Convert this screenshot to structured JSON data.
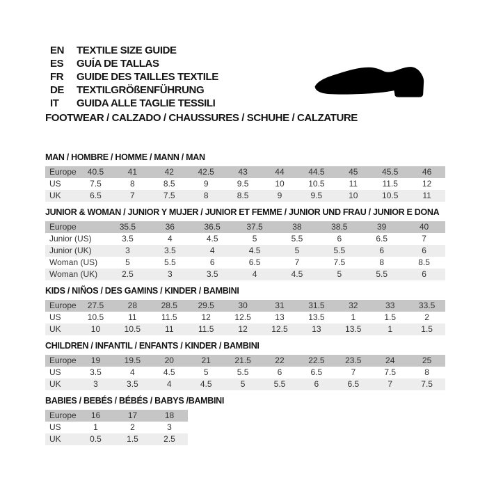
{
  "header": {
    "languages": [
      {
        "code": "EN",
        "label": "TEXTILE SIZE GUIDE"
      },
      {
        "code": "ES",
        "label": "GUÍA DE TALLAS"
      },
      {
        "code": "FR",
        "label": "GUIDE DES TAILLES TEXTILE"
      },
      {
        "code": "DE",
        "label": "TEXTILGRÖßENFÜHRUNG"
      },
      {
        "code": "IT",
        "label": "GUIDA ALLE TAGLIE TESSILI"
      }
    ],
    "shoe_icon": "dress-shoe-silhouette",
    "category_line": "FOOTWEAR / CALZADO / CHAUSSURES / SCHUHE / CALZATURE"
  },
  "colors": {
    "header_row": "#c6c6c6",
    "alt_row": "#ededed",
    "text": "#333333",
    "title_text": "#141414",
    "shoe": "#000000"
  },
  "tables": [
    {
      "title": "MAN / HOMBRE / HOMME / MANN / MAN",
      "rows": [
        {
          "label": "Europe",
          "values": [
            "40.5",
            "41",
            "42",
            "42.5",
            "43",
            "44",
            "44.5",
            "45",
            "45.5",
            "46"
          ]
        },
        {
          "label": "US",
          "values": [
            "7.5",
            "8",
            "8.5",
            "9",
            "9.5",
            "10",
            "10.5",
            "11",
            "11.5",
            "12"
          ]
        },
        {
          "label": "UK",
          "values": [
            "6.5",
            "7",
            "7.5",
            "8",
            "8.5",
            "9",
            "9.5",
            "10",
            "10.5",
            "11"
          ]
        }
      ]
    },
    {
      "title": "JUNIOR & WOMAN / JUNIOR Y MUJER / JUNIOR ET FEMME / JUNIOR UND FRAU / JUNIOR E DONA",
      "rows": [
        {
          "label": "Europe",
          "values": [
            "35.5",
            "36",
            "36.5",
            "37.5",
            "38",
            "38.5",
            "39",
            "40"
          ]
        },
        {
          "label": "Junior (US)",
          "values": [
            "3.5",
            "4",
            "4.5",
            "5",
            "5.5",
            "6",
            "6.5",
            "7"
          ]
        },
        {
          "label": "Junior (UK)",
          "values": [
            "3",
            "3.5",
            "4",
            "4.5",
            "5",
            "5.5",
            "6",
            "6"
          ]
        },
        {
          "label": "Woman (US)",
          "values": [
            "5",
            "5.5",
            "6",
            "6.5",
            "7",
            "7.5",
            "8",
            "8.5"
          ]
        },
        {
          "label": "Woman (UK)",
          "values": [
            "2.5",
            "3",
            "3.5",
            "4",
            "4.5",
            "5",
            "5.5",
            "6"
          ]
        }
      ]
    },
    {
      "title": "KIDS / NIÑOS / DES GAMINS / KINDER / BAMBINI",
      "rows": [
        {
          "label": "Europe",
          "values": [
            "27.5",
            "28",
            "28.5",
            "29.5",
            "30",
            "31",
            "31.5",
            "32",
            "33",
            "33.5"
          ]
        },
        {
          "label": "US",
          "values": [
            "10.5",
            "11",
            "11.5",
            "12",
            "12.5",
            "13",
            "13.5",
            "1",
            "1.5",
            "2"
          ]
        },
        {
          "label": "UK",
          "values": [
            "10",
            "10.5",
            "11",
            "11.5",
            "12",
            "12.5",
            "13",
            "13.5",
            "1",
            "1.5"
          ]
        }
      ]
    },
    {
      "title": "CHILDREN / INFANTIL / ENFANTS / KINDER / BAMBINI",
      "rows": [
        {
          "label": "Europe",
          "values": [
            "19",
            "19.5",
            "20",
            "21",
            "21.5",
            "22",
            "22.5",
            "23.5",
            "24",
            "25"
          ]
        },
        {
          "label": "US",
          "values": [
            "3.5",
            "4",
            "4.5",
            "5",
            "5.5",
            "6",
            "6.5",
            "7",
            "7.5",
            "8"
          ]
        },
        {
          "label": "UK",
          "values": [
            "3",
            "3.5",
            "4",
            "4.5",
            "5",
            "5.5",
            "6",
            "6.5",
            "7",
            "7.5"
          ]
        }
      ]
    },
    {
      "title": "BABIES / BEBÉS / BÉBÉS / BABYS /BAMBINI",
      "rows": [
        {
          "label": "Europe",
          "values": [
            "16",
            "17",
            "18"
          ]
        },
        {
          "label": "US",
          "values": [
            "1",
            "2",
            "3"
          ]
        },
        {
          "label": "UK",
          "values": [
            "0.5",
            "1.5",
            "2.5"
          ]
        }
      ]
    }
  ]
}
